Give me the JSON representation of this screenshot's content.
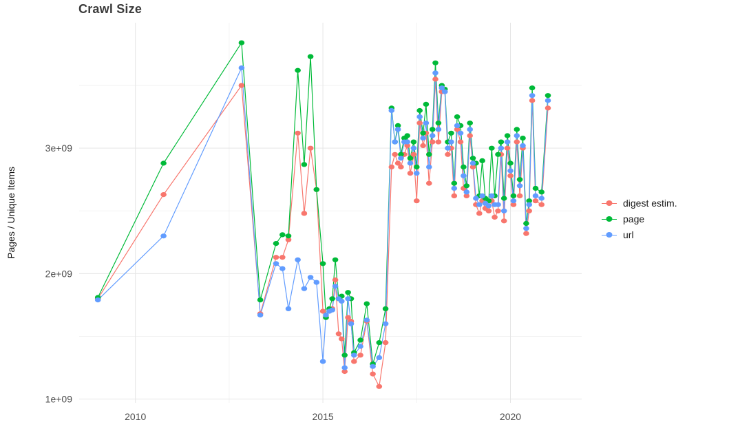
{
  "chart_data": {
    "type": "line",
    "title": "Crawl Size",
    "xlabel": "",
    "ylabel": "Pages / Unique Items",
    "legend_position": "right",
    "grid": true,
    "xlim": [
      2008.5,
      2021.9
    ],
    "ylim": [
      970000000.0,
      4000000000.0
    ],
    "x_ticks": {
      "values": [
        2010,
        2015,
        2020
      ],
      "labels": [
        "2010",
        "2015",
        "2020"
      ]
    },
    "x_minor_ticks": [
      2012.5,
      2017.5
    ],
    "y_ticks": {
      "values": [
        1000000000.0,
        2000000000.0,
        3000000000.0
      ],
      "labels": [
        "1e+09",
        "2e+09",
        "3e+09"
      ]
    },
    "y_minor_ticks": [
      1500000000.0,
      2500000000.0,
      3500000000.0
    ],
    "x": [
      2009.0,
      2010.75,
      2012.83,
      2013.33,
      2013.75,
      2013.92,
      2014.08,
      2014.33,
      2014.5,
      2014.67,
      2014.83,
      2015.0,
      2015.08,
      2015.17,
      2015.25,
      2015.33,
      2015.42,
      2015.5,
      2015.58,
      2015.67,
      2015.75,
      2015.83,
      2016.0,
      2016.17,
      2016.33,
      2016.5,
      2016.67,
      2016.83,
      2016.92,
      2017.0,
      2017.08,
      2017.17,
      2017.25,
      2017.33,
      2017.42,
      2017.5,
      2017.58,
      2017.67,
      2017.75,
      2017.83,
      2017.92,
      2018.0,
      2018.08,
      2018.17,
      2018.25,
      2018.33,
      2018.42,
      2018.5,
      2018.58,
      2018.67,
      2018.75,
      2018.83,
      2018.92,
      2019.0,
      2019.08,
      2019.17,
      2019.25,
      2019.33,
      2019.42,
      2019.5,
      2019.58,
      2019.67,
      2019.75,
      2019.83,
      2019.92,
      2020.0,
      2020.08,
      2020.17,
      2020.25,
      2020.33,
      2020.42,
      2020.5,
      2020.58,
      2020.67,
      2020.83,
      2021.0
    ],
    "series": [
      {
        "id": "digest-estim",
        "name": "digest estim.",
        "color": "#F8766D",
        "values": [
          1800000000.0,
          2630000000.0,
          3500000000.0,
          1680000000.0,
          2130000000.0,
          2130000000.0,
          2270000000.0,
          3120000000.0,
          2480000000.0,
          3000000000.0,
          2670000000.0,
          1700000000.0,
          1650000000.0,
          1700000000.0,
          1720000000.0,
          1950000000.0,
          1520000000.0,
          1480000000.0,
          1220000000.0,
          1650000000.0,
          1620000000.0,
          1300000000.0,
          1350000000.0,
          1620000000.0,
          1200000000.0,
          1100000000.0,
          1450000000.0,
          2850000000.0,
          2950000000.0,
          2880000000.0,
          2850000000.0,
          2950000000.0,
          3020000000.0,
          2800000000.0,
          2950000000.0,
          2580000000.0,
          3200000000.0,
          3020000000.0,
          3120000000.0,
          2720000000.0,
          3050000000.0,
          3550000000.0,
          3050000000.0,
          3450000000.0,
          3450000000.0,
          2950000000.0,
          3000000000.0,
          2620000000.0,
          3150000000.0,
          3050000000.0,
          2680000000.0,
          2620000000.0,
          3100000000.0,
          2850000000.0,
          2550000000.0,
          2480000000.0,
          2580000000.0,
          2520000000.0,
          2500000000.0,
          2580000000.0,
          2450000000.0,
          2500000000.0,
          2950000000.0,
          2420000000.0,
          3000000000.0,
          2780000000.0,
          2550000000.0,
          3050000000.0,
          2620000000.0,
          3000000000.0,
          2320000000.0,
          2500000000.0,
          3380000000.0,
          2580000000.0,
          2550000000.0,
          3320000000.0
        ]
      },
      {
        "id": "page",
        "name": "page",
        "color": "#00BA38",
        "values": [
          1810000000.0,
          2880000000.0,
          3840000000.0,
          1790000000.0,
          2240000000.0,
          2310000000.0,
          2300000000.0,
          3620000000.0,
          2870000000.0,
          3730000000.0,
          2670000000.0,
          2080000000.0,
          1650000000.0,
          1720000000.0,
          1800000000.0,
          2110000000.0,
          1800000000.0,
          1820000000.0,
          1350000000.0,
          1850000000.0,
          1800000000.0,
          1370000000.0,
          1470000000.0,
          1760000000.0,
          1280000000.0,
          1450000000.0,
          1720000000.0,
          3320000000.0,
          3050000000.0,
          3180000000.0,
          2950000000.0,
          3080000000.0,
          3100000000.0,
          2920000000.0,
          3050000000.0,
          2850000000.0,
          3300000000.0,
          3120000000.0,
          3350000000.0,
          2950000000.0,
          3150000000.0,
          3680000000.0,
          3200000000.0,
          3500000000.0,
          3470000000.0,
          3050000000.0,
          3120000000.0,
          2720000000.0,
          3250000000.0,
          3180000000.0,
          2850000000.0,
          2700000000.0,
          3200000000.0,
          2920000000.0,
          2880000000.0,
          2620000000.0,
          2900000000.0,
          2600000000.0,
          2580000000.0,
          3000000000.0,
          2620000000.0,
          2950000000.0,
          3050000000.0,
          2600000000.0,
          3100000000.0,
          2880000000.0,
          2620000000.0,
          3150000000.0,
          2750000000.0,
          3080000000.0,
          2400000000.0,
          2580000000.0,
          3480000000.0,
          2680000000.0,
          2650000000.0,
          3420000000.0
        ]
      },
      {
        "id": "url",
        "name": "url",
        "color": "#619CFF",
        "values": [
          1790000000.0,
          2300000000.0,
          3640000000.0,
          1670000000.0,
          2080000000.0,
          2040000000.0,
          1720000000.0,
          2110000000.0,
          1880000000.0,
          1970000000.0,
          1930000000.0,
          1300000000.0,
          1670000000.0,
          1700000000.0,
          1710000000.0,
          1900000000.0,
          1800000000.0,
          1780000000.0,
          1250000000.0,
          1800000000.0,
          1600000000.0,
          1350000000.0,
          1420000000.0,
          1630000000.0,
          1260000000.0,
          1330000000.0,
          1600000000.0,
          3300000000.0,
          3050000000.0,
          3150000000.0,
          2920000000.0,
          3050000000.0,
          3050000000.0,
          2880000000.0,
          3000000000.0,
          2800000000.0,
          3250000000.0,
          3080000000.0,
          3200000000.0,
          2850000000.0,
          3100000000.0,
          3600000000.0,
          3150000000.0,
          3480000000.0,
          3450000000.0,
          3000000000.0,
          3050000000.0,
          2680000000.0,
          3180000000.0,
          3120000000.0,
          2780000000.0,
          2650000000.0,
          3150000000.0,
          2880000000.0,
          2600000000.0,
          2550000000.0,
          2620000000.0,
          2560000000.0,
          2540000000.0,
          2620000000.0,
          2550000000.0,
          2550000000.0,
          3000000000.0,
          2500000000.0,
          3050000000.0,
          2820000000.0,
          2580000000.0,
          3100000000.0,
          2700000000.0,
          3020000000.0,
          2360000000.0,
          2550000000.0,
          3420000000.0,
          2620000000.0,
          2600000000.0,
          3380000000.0
        ]
      }
    ],
    "grid_major_color": "#e5e5e5",
    "grid_minor_color": "#f2f2f2",
    "tick_label_color": "#4d4d4d"
  }
}
